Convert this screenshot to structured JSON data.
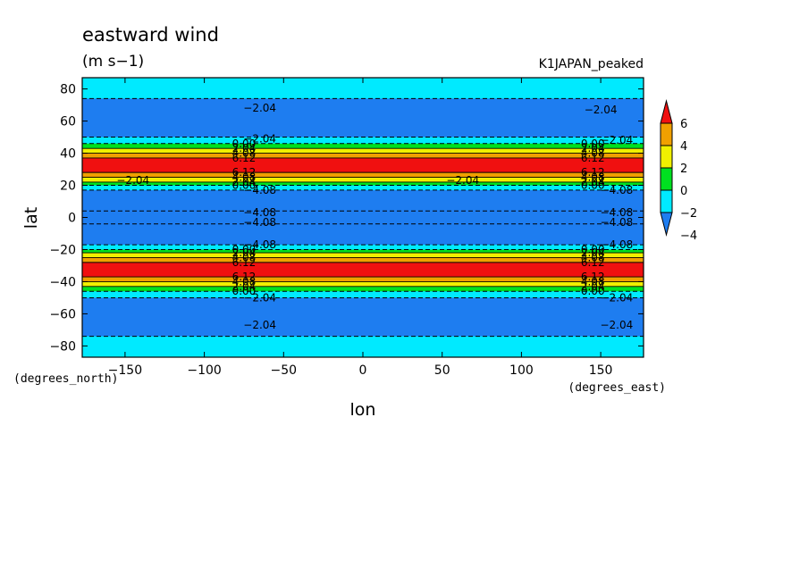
{
  "chart_data": {
    "type": "contour",
    "title": "eastward wind",
    "units": "(m s−1)",
    "dataset": "K1JAPAN_peaked",
    "xlabel": "lon",
    "ylabel": "lat",
    "x_unit_label": "(degrees_east)",
    "y_unit_label": "(degrees_north)",
    "xlim": [
      -177,
      177
    ],
    "ylim": [
      -87,
      87
    ],
    "x_ticks": [
      -150,
      -100,
      -50,
      0,
      50,
      100,
      150
    ],
    "y_ticks": [
      -80,
      -60,
      -40,
      -20,
      0,
      20,
      40,
      60,
      80
    ],
    "x_tick_labels": [
      "−150",
      "−100",
      "−50",
      "0",
      "50",
      "100",
      "150"
    ],
    "y_tick_labels": [
      "−80",
      "−60",
      "−40",
      "−20",
      "0",
      "20",
      "40",
      "60",
      "80"
    ],
    "colorbar": {
      "levels": [
        -4,
        -2,
        0,
        2,
        4,
        6
      ],
      "level_labels": [
        "−4",
        "−2",
        "0",
        "2",
        "4",
        "6"
      ],
      "colors": [
        "#1e7df0",
        "#00eaff",
        "#00e020",
        "#f0f000",
        "#f0a000",
        "#f01010"
      ]
    },
    "zonal_bands": [
      {
        "lat_from": 87,
        "lat_to": 74,
        "class": -2
      },
      {
        "lat_from": 74,
        "lat_to": 50,
        "class": -4
      },
      {
        "lat_from": 50,
        "lat_to": 46,
        "class": -2
      },
      {
        "lat_from": 46,
        "lat_to": 43,
        "class": 0
      },
      {
        "lat_from": 43,
        "lat_to": 40,
        "class": 2
      },
      {
        "lat_from": 40,
        "lat_to": 37,
        "class": 4
      },
      {
        "lat_from": 37,
        "lat_to": 28,
        "class": 6
      },
      {
        "lat_from": 28,
        "lat_to": 25,
        "class": 4
      },
      {
        "lat_from": 25,
        "lat_to": 22,
        "class": 2
      },
      {
        "lat_from": 22,
        "lat_to": 20,
        "class": 0
      },
      {
        "lat_from": 20,
        "lat_to": 17,
        "class": -2
      },
      {
        "lat_from": 17,
        "lat_to": 4,
        "class": -4
      },
      {
        "lat_from": 4,
        "lat_to": -4,
        "class": -4
      },
      {
        "lat_from": -4,
        "lat_to": -17,
        "class": -4
      },
      {
        "lat_from": -17,
        "lat_to": -20,
        "class": -2
      },
      {
        "lat_from": -20,
        "lat_to": -22,
        "class": 0
      },
      {
        "lat_from": -22,
        "lat_to": -25,
        "class": 2
      },
      {
        "lat_from": -25,
        "lat_to": -28,
        "class": 4
      },
      {
        "lat_from": -28,
        "lat_to": -37,
        "class": 6
      },
      {
        "lat_from": -37,
        "lat_to": -40,
        "class": 4
      },
      {
        "lat_from": -40,
        "lat_to": -43,
        "class": 2
      },
      {
        "lat_from": -43,
        "lat_to": -46,
        "class": 0
      },
      {
        "lat_from": -46,
        "lat_to": -50,
        "class": -2
      },
      {
        "lat_from": -50,
        "lat_to": -74,
        "class": -4
      },
      {
        "lat_from": -74,
        "lat_to": -87,
        "class": -2
      }
    ],
    "contour_labels": [
      {
        "text": "−2.04",
        "lon": -65,
        "lat": 68
      },
      {
        "text": "−2.04",
        "lon": 150,
        "lat": 67
      },
      {
        "text": "−2.04",
        "lon": -65,
        "lat": 49
      },
      {
        "text": "−2.04",
        "lon": 160,
        "lat": 48
      },
      {
        "text": "−4.08",
        "lon": -65,
        "lat": 17
      },
      {
        "text": "−4.08",
        "lon": 160,
        "lat": 17
      },
      {
        "text": "−4.08",
        "lon": -65,
        "lat": 3
      },
      {
        "text": "−4.08",
        "lon": 160,
        "lat": 3
      },
      {
        "text": "−4.08",
        "lon": -65,
        "lat": -3
      },
      {
        "text": "−4.08",
        "lon": 160,
        "lat": -3
      },
      {
        "text": "−4.08",
        "lon": -65,
        "lat": -17
      },
      {
        "text": "−4.08",
        "lon": 160,
        "lat": -17
      },
      {
        "text": "−2.04",
        "lon": -65,
        "lat": -50
      },
      {
        "text": "−2.04",
        "lon": 160,
        "lat": -50
      },
      {
        "text": "−2.04",
        "lon": -65,
        "lat": -67
      },
      {
        "text": "−2.04",
        "lon": 160,
        "lat": -67
      },
      {
        "text": "−2.04",
        "lon": -145,
        "lat": 23
      },
      {
        "text": "−2.04",
        "lon": 63,
        "lat": 23
      },
      {
        "text": "0.00",
        "lon": -75,
        "lat": 46
      },
      {
        "text": "2.04",
        "lon": -75,
        "lat": 43
      },
      {
        "text": "4.08",
        "lon": -75,
        "lat": 40
      },
      {
        "text": "6.12",
        "lon": -75,
        "lat": 37
      },
      {
        "text": "6.12",
        "lon": -75,
        "lat": 28
      },
      {
        "text": "4.08",
        "lon": -75,
        "lat": 25
      },
      {
        "text": "2.04",
        "lon": -75,
        "lat": 22
      },
      {
        "text": "0.00",
        "lon": -75,
        "lat": 20
      },
      {
        "text": "0.00",
        "lon": 145,
        "lat": 46
      },
      {
        "text": "2.04",
        "lon": 145,
        "lat": 43
      },
      {
        "text": "4.08",
        "lon": 145,
        "lat": 40
      },
      {
        "text": "6.12",
        "lon": 145,
        "lat": 37
      },
      {
        "text": "6.12",
        "lon": 145,
        "lat": 28
      },
      {
        "text": "4.08",
        "lon": 145,
        "lat": 25
      },
      {
        "text": "2.04",
        "lon": 145,
        "lat": 22
      },
      {
        "text": "0.00",
        "lon": 145,
        "lat": 20
      },
      {
        "text": "0.00",
        "lon": -75,
        "lat": -20
      },
      {
        "text": "2.04",
        "lon": -75,
        "lat": -22
      },
      {
        "text": "4.08",
        "lon": -75,
        "lat": -25
      },
      {
        "text": "6.12",
        "lon": -75,
        "lat": -28
      },
      {
        "text": "6.12",
        "lon": -75,
        "lat": -37
      },
      {
        "text": "4.08",
        "lon": -75,
        "lat": -40
      },
      {
        "text": "2.04",
        "lon": -75,
        "lat": -43
      },
      {
        "text": "0.00",
        "lon": -75,
        "lat": -46
      },
      {
        "text": "0.00",
        "lon": 145,
        "lat": -20
      },
      {
        "text": "2.04",
        "lon": 145,
        "lat": -22
      },
      {
        "text": "4.08",
        "lon": 145,
        "lat": -25
      },
      {
        "text": "6.12",
        "lon": 145,
        "lat": -28
      },
      {
        "text": "6.12",
        "lon": 145,
        "lat": -37
      },
      {
        "text": "4.08",
        "lon": 145,
        "lat": -40
      },
      {
        "text": "2.04",
        "lon": 145,
        "lat": -43
      },
      {
        "text": "0.00",
        "lon": 145,
        "lat": -46
      }
    ]
  }
}
